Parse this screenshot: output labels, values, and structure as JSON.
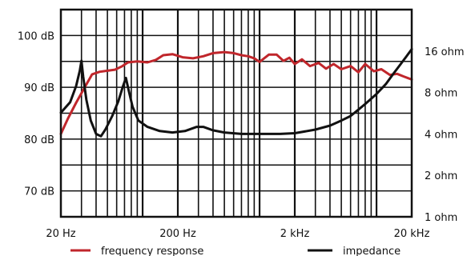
{
  "chart_data": {
    "type": "line",
    "x_scale": "log",
    "xlim": [
      20,
      20000
    ],
    "ylim_left": [
      65,
      105
    ],
    "right_scale": "log",
    "right_lim": [
      1,
      32
    ],
    "grid": true,
    "legend_placement": "bottom",
    "x_ticks": [
      {
        "value": 20,
        "label": "20 Hz"
      },
      {
        "value": 200,
        "label": "200 Hz"
      },
      {
        "value": 2000,
        "label": "2 kHz"
      },
      {
        "value": 20000,
        "label": "20 kHz"
      }
    ],
    "y_left_ticks": [
      {
        "value": 70,
        "label": "70 dB"
      },
      {
        "value": 80,
        "label": "80 dB"
      },
      {
        "value": 90,
        "label": "90 dB"
      },
      {
        "value": 100,
        "label": "100 dB"
      }
    ],
    "y_right_ticks": [
      {
        "value": 1,
        "label": "1 ohm"
      },
      {
        "value": 2,
        "label": "2 ohm"
      },
      {
        "value": 4,
        "label": "4 ohm"
      },
      {
        "value": 8,
        "label": "8 ohm"
      },
      {
        "value": 16,
        "label": "16 ohm"
      }
    ],
    "series": [
      {
        "name": "frequency response",
        "axis": "left",
        "color": "#c0262b",
        "points": [
          [
            20,
            81
          ],
          [
            23,
            84
          ],
          [
            27,
            87
          ],
          [
            32,
            90
          ],
          [
            37,
            92.5
          ],
          [
            43,
            93
          ],
          [
            50,
            93.2
          ],
          [
            58,
            93.4
          ],
          [
            66,
            94
          ],
          [
            75,
            94.8
          ],
          [
            90,
            95
          ],
          [
            110,
            94.8
          ],
          [
            130,
            95.3
          ],
          [
            150,
            96.2
          ],
          [
            180,
            96.4
          ],
          [
            220,
            95.8
          ],
          [
            270,
            95.6
          ],
          [
            330,
            96
          ],
          [
            400,
            96.6
          ],
          [
            500,
            96.8
          ],
          [
            600,
            96.6
          ],
          [
            700,
            96.2
          ],
          [
            800,
            96
          ],
          [
            900,
            95.6
          ],
          [
            1000,
            94.9
          ],
          [
            1200,
            96.3
          ],
          [
            1400,
            96.3
          ],
          [
            1600,
            95.1
          ],
          [
            1800,
            95.7
          ],
          [
            2000,
            94.5
          ],
          [
            2300,
            95.4
          ],
          [
            2700,
            94.1
          ],
          [
            3200,
            94.7
          ],
          [
            3700,
            93.6
          ],
          [
            4300,
            94.5
          ],
          [
            5000,
            93.5
          ],
          [
            6000,
            94.1
          ],
          [
            7000,
            92.9
          ],
          [
            8000,
            94.5
          ],
          [
            9500,
            93.1
          ],
          [
            11000,
            93.5
          ],
          [
            13000,
            92.4
          ],
          [
            15000,
            92.6
          ],
          [
            17000,
            92.1
          ],
          [
            20000,
            91.5
          ]
        ]
      },
      {
        "name": "impedance",
        "axis": "right",
        "color": "#111111",
        "points": [
          [
            20,
            5.7
          ],
          [
            24,
            6.8
          ],
          [
            27,
            8.9
          ],
          [
            29,
            11.5
          ],
          [
            30,
            13.6
          ],
          [
            31,
            10.5
          ],
          [
            33,
            7.1
          ],
          [
            36,
            5
          ],
          [
            40,
            4
          ],
          [
            44,
            3.85
          ],
          [
            48,
            4.3
          ],
          [
            55,
            5.4
          ],
          [
            62,
            6.9
          ],
          [
            68,
            8.9
          ],
          [
            72,
            10.2
          ],
          [
            76,
            8.3
          ],
          [
            82,
            6.3
          ],
          [
            92,
            5
          ],
          [
            110,
            4.5
          ],
          [
            140,
            4.2
          ],
          [
            180,
            4.1
          ],
          [
            230,
            4.2
          ],
          [
            290,
            4.5
          ],
          [
            330,
            4.5
          ],
          [
            400,
            4.25
          ],
          [
            500,
            4.1
          ],
          [
            700,
            4
          ],
          [
            1000,
            4
          ],
          [
            1500,
            4
          ],
          [
            2000,
            4.05
          ],
          [
            3000,
            4.3
          ],
          [
            4000,
            4.6
          ],
          [
            5000,
            5
          ],
          [
            6000,
            5.4
          ],
          [
            7000,
            6
          ],
          [
            8000,
            6.6
          ],
          [
            10000,
            7.8
          ],
          [
            12000,
            9.2
          ],
          [
            14000,
            11
          ],
          [
            16000,
            12.8
          ],
          [
            18000,
            14.6
          ],
          [
            20000,
            16.5
          ]
        ]
      }
    ]
  }
}
